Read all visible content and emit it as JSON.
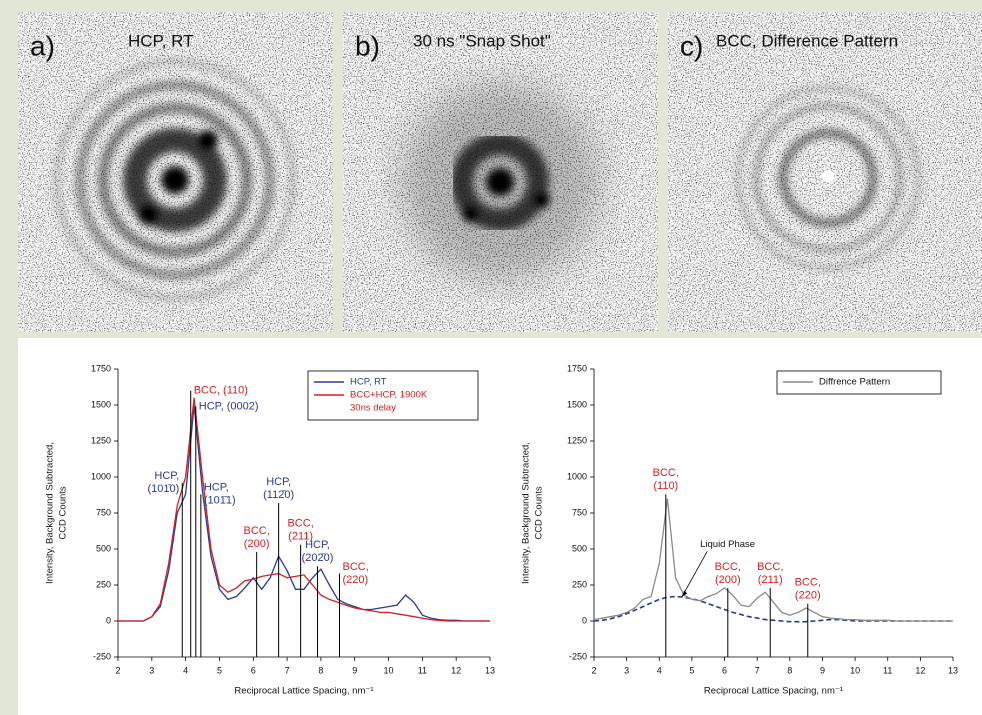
{
  "panels": [
    {
      "label": "a)",
      "caption": "HCP, RT"
    },
    {
      "label": "b)",
      "caption": "30 ns \"Snap Shot\""
    },
    {
      "label": "c)",
      "caption": "BCC, Difference Pattern"
    }
  ],
  "chart_data": [
    {
      "type": "line",
      "ylabel": [
        "Intensity, Background Subtracted,",
        "CCD Counts"
      ],
      "xlabel": "Reciprocal Lattice Spacing, nm⁻¹",
      "xlim": [
        2,
        13
      ],
      "xticks": [
        2,
        3,
        4,
        5,
        6,
        7,
        8,
        9,
        10,
        11,
        12,
        13
      ],
      "ylim": [
        -250,
        1750
      ],
      "yticks": [
        -250,
        0,
        250,
        500,
        750,
        1000,
        1250,
        1500,
        1750
      ],
      "legend": "upper right",
      "x": [
        2,
        2.25,
        2.5,
        2.75,
        3,
        3.25,
        3.5,
        3.75,
        4,
        4.25,
        4.5,
        4.75,
        5,
        5.25,
        5.5,
        5.75,
        6,
        6.25,
        6.5,
        6.75,
        7,
        7.25,
        7.5,
        7.75,
        8,
        8.25,
        8.5,
        8.75,
        9,
        9.25,
        9.5,
        9.75,
        10,
        10.25,
        10.5,
        10.75,
        11,
        11.25,
        11.5,
        11.75,
        12,
        12.25,
        12.5,
        12.75,
        13
      ],
      "series": [
        {
          "name": [
            "HCP, RT"
          ],
          "color": "#2b3a8f",
          "values": [
            0,
            0,
            0,
            0,
            30,
            100,
            350,
            750,
            880,
            1500,
            900,
            450,
            220,
            150,
            170,
            230,
            300,
            220,
            300,
            450,
            350,
            220,
            220,
            300,
            360,
            250,
            150,
            120,
            100,
            80,
            80,
            90,
            100,
            110,
            180,
            130,
            40,
            20,
            10,
            5,
            5,
            0,
            0,
            0,
            0
          ]
        },
        {
          "name": [
            "BCC+HCP, 1900K",
            "30ns delay"
          ],
          "color": "#d42020",
          "values": [
            0,
            0,
            0,
            0,
            30,
            120,
            400,
            800,
            1000,
            1550,
            1000,
            500,
            250,
            200,
            230,
            280,
            290,
            310,
            320,
            330,
            300,
            310,
            320,
            250,
            180,
            150,
            130,
            110,
            90,
            80,
            70,
            60,
            60,
            50,
            40,
            30,
            20,
            10,
            5,
            0,
            0,
            0,
            0,
            0,
            0
          ]
        }
      ],
      "peaks": [
        {
          "x": 3.9,
          "top": 960,
          "label": [
            "HCP,",
            "(101̄0)"
          ],
          "color": "#2b3a8f",
          "side": "left"
        },
        {
          "x": 4.15,
          "top": 1600,
          "label": [
            "BCC, (110)"
          ],
          "color": "#d42020",
          "side": "right"
        },
        {
          "x": 4.3,
          "top": 1490,
          "label": [
            "HCP, (0002)"
          ],
          "color": "#2b3a8f",
          "side": "right"
        },
        {
          "x": 4.45,
          "top": 880,
          "label": [
            "HCP,",
            "(101̄1)"
          ],
          "color": "#2b3a8f",
          "side": "right"
        },
        {
          "x": 6.1,
          "top": 480,
          "label": [
            "BCC,",
            "(200)"
          ],
          "color": "#d42020",
          "side": "above"
        },
        {
          "x": 6.75,
          "top": 820,
          "label": [
            "HCP,",
            "(112̄0)"
          ],
          "color": "#2b3a8f",
          "side": "above"
        },
        {
          "x": 7.4,
          "top": 530,
          "label": [
            "BCC,",
            "(211)"
          ],
          "color": "#d42020",
          "side": "above"
        },
        {
          "x": 7.9,
          "top": 380,
          "label": [
            "HCP,",
            "(202̄0)"
          ],
          "color": "#2b3a8f",
          "side": "above"
        },
        {
          "x": 8.55,
          "top": 330,
          "label": [
            "BCC,",
            "(220)"
          ],
          "color": "#d42020",
          "side": "right"
        }
      ]
    },
    {
      "type": "line",
      "ylabel": [
        "Intensity, Background Subtracted,",
        "CCD Counts"
      ],
      "xlabel": "Reciprocal Lattice Spacing, nm⁻¹",
      "xlim": [
        2,
        13
      ],
      "xticks": [
        2,
        3,
        4,
        5,
        6,
        7,
        8,
        9,
        10,
        11,
        12,
        13
      ],
      "ylim": [
        -250,
        1750
      ],
      "yticks": [
        -250,
        0,
        250,
        500,
        750,
        1000,
        1250,
        1500,
        1750
      ],
      "legend": "upper right",
      "x": [
        2,
        2.25,
        2.5,
        2.75,
        3,
        3.25,
        3.5,
        3.75,
        4,
        4.25,
        4.5,
        4.75,
        5,
        5.25,
        5.5,
        5.75,
        6,
        6.25,
        6.5,
        6.75,
        7,
        7.25,
        7.5,
        7.75,
        8,
        8.25,
        8.5,
        8.75,
        9,
        9.25,
        9.5,
        9.75,
        10,
        10.25,
        10.5,
        10.75,
        11,
        11.25,
        11.5,
        11.75,
        12,
        12.25,
        12.5,
        12.75,
        13
      ],
      "series": [
        {
          "name": [
            "Diffrence Pattern"
          ],
          "color": "#8a8a8a",
          "values": [
            10,
            20,
            30,
            40,
            60,
            90,
            150,
            170,
            400,
            850,
            300,
            180,
            150,
            140,
            170,
            190,
            230,
            180,
            110,
            100,
            160,
            200,
            130,
            60,
            40,
            60,
            90,
            60,
            30,
            20,
            15,
            10,
            10,
            5,
            5,
            5,
            5,
            0,
            0,
            0,
            0,
            0,
            0,
            0,
            0
          ]
        }
      ],
      "curves": [
        {
          "color": "#2b3a8f",
          "dash": true,
          "values": [
            0,
            5,
            15,
            30,
            50,
            75,
            100,
            125,
            150,
            165,
            170,
            165,
            155,
            140,
            120,
            100,
            80,
            60,
            45,
            30,
            20,
            10,
            5,
            0,
            -5,
            -5,
            -5,
            0,
            5,
            10,
            10,
            5,
            0,
            0,
            0,
            0,
            0,
            0,
            0,
            0,
            0,
            0,
            0,
            0,
            0
          ]
        }
      ],
      "peaks": [
        {
          "x": 4.2,
          "top": 880,
          "label": [
            "BCC,",
            "(110)"
          ],
          "color": "#d42020",
          "side": "above"
        },
        {
          "x": 6.1,
          "top": 230,
          "label": [
            "BCC,",
            "(200)"
          ],
          "color": "#d42020",
          "side": "above"
        },
        {
          "x": 7.4,
          "top": 230,
          "label": [
            "BCC,",
            "(211)"
          ],
          "color": "#d42020",
          "side": "above"
        },
        {
          "x": 8.55,
          "top": 120,
          "label": [
            "BCC,",
            "(220)"
          ],
          "color": "#d42020",
          "side": "above"
        }
      ],
      "annotation": {
        "text": "Liquid Phase",
        "x": 4.7,
        "y": 170
      }
    }
  ]
}
